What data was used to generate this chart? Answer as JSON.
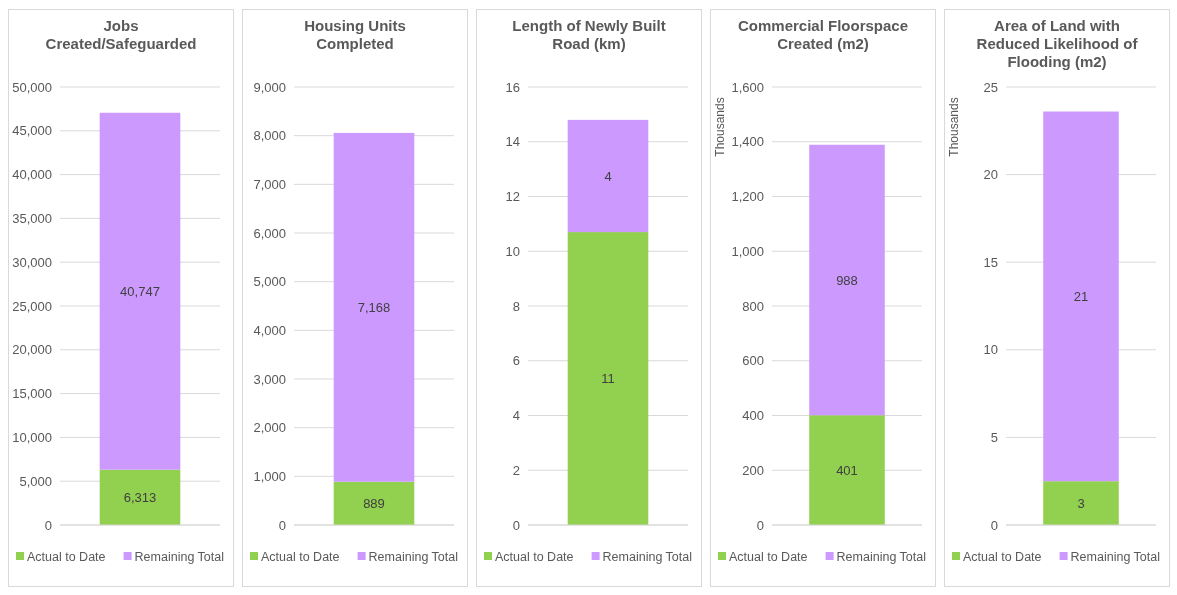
{
  "chart_data": [
    {
      "type": "bar",
      "title": "Jobs Created/Safeguarded",
      "stacked": true,
      "categories": [
        null
      ],
      "ylim": [
        0,
        50000
      ],
      "yticks": [
        {
          "value": 0,
          "label": "0"
        },
        {
          "value": 5000,
          "label": "5,000"
        },
        {
          "value": 10000,
          "label": "10,000"
        },
        {
          "value": 15000,
          "label": "15,000"
        },
        {
          "value": 20000,
          "label": "20,000"
        },
        {
          "value": 25000,
          "label": "25,000"
        },
        {
          "value": 30000,
          "label": "30,000"
        },
        {
          "value": 35000,
          "label": "35,000"
        },
        {
          "value": 40000,
          "label": "40,000"
        },
        {
          "value": 45000,
          "label": "45,000"
        },
        {
          "value": 50000,
          "label": "50,000"
        }
      ],
      "grid": "y",
      "legend": "bottom",
      "series": [
        {
          "name": "Actual to Date",
          "color": "#92d050",
          "values": [
            6313
          ],
          "value_labels": [
            "6,313"
          ]
        },
        {
          "name": "Remaining Total",
          "color": "#cc99ff",
          "values": [
            40747
          ],
          "value_labels": [
            "40,747"
          ]
        }
      ]
    },
    {
      "type": "bar",
      "title": "Housing Units Completed",
      "stacked": true,
      "categories": [
        null
      ],
      "ylim": [
        0,
        9000
      ],
      "yticks": [
        {
          "value": 0,
          "label": "0"
        },
        {
          "value": 1000,
          "label": "1,000"
        },
        {
          "value": 2000,
          "label": "2,000"
        },
        {
          "value": 3000,
          "label": "3,000"
        },
        {
          "value": 4000,
          "label": "4,000"
        },
        {
          "value": 5000,
          "label": "5,000"
        },
        {
          "value": 6000,
          "label": "6,000"
        },
        {
          "value": 7000,
          "label": "7,000"
        },
        {
          "value": 8000,
          "label": "8,000"
        },
        {
          "value": 9000,
          "label": "9,000"
        }
      ],
      "grid": "y",
      "legend": "bottom",
      "series": [
        {
          "name": "Actual to Date",
          "color": "#92d050",
          "values": [
            889
          ],
          "value_labels": [
            "889"
          ]
        },
        {
          "name": "Remaining Total",
          "color": "#cc99ff",
          "values": [
            7168
          ],
          "value_labels": [
            "7,168"
          ]
        }
      ]
    },
    {
      "type": "bar",
      "title": "Length of Newly Built Road (km)",
      "stacked": true,
      "categories": [
        null
      ],
      "ylim": [
        0,
        16
      ],
      "yticks": [
        0,
        2,
        4,
        6,
        8,
        10,
        12,
        14,
        16
      ],
      "grid": "y",
      "legend": "bottom",
      "series": [
        {
          "name": "Actual to Date",
          "color": "#92d050",
          "values": [
            10.7
          ],
          "value_labels": [
            "11"
          ]
        },
        {
          "name": "Remaining Total",
          "color": "#cc99ff",
          "values": [
            4.1
          ],
          "value_labels": [
            "4"
          ]
        }
      ]
    },
    {
      "type": "bar",
      "title": "Commercial Floorspace Created (m2)",
      "ylabel": "Thousands",
      "stacked": true,
      "categories": [
        null
      ],
      "ylim": [
        0,
        1600
      ],
      "yticks": [
        {
          "value": 0,
          "label": "0"
        },
        {
          "value": 200,
          "label": "200"
        },
        {
          "value": 400,
          "label": "400"
        },
        {
          "value": 600,
          "label": "600"
        },
        {
          "value": 800,
          "label": "800"
        },
        {
          "value": 1000,
          "label": "1,000"
        },
        {
          "value": 1200,
          "label": "1,200"
        },
        {
          "value": 1400,
          "label": "1,400"
        },
        {
          "value": 1600,
          "label": "1,600"
        }
      ],
      "grid": "y",
      "legend": "bottom",
      "series": [
        {
          "name": "Actual to Date",
          "color": "#92d050",
          "values": [
            401
          ],
          "value_labels": [
            "401"
          ]
        },
        {
          "name": "Remaining Total",
          "color": "#cc99ff",
          "values": [
            988
          ],
          "value_labels": [
            "988"
          ]
        }
      ]
    },
    {
      "type": "bar",
      "title": "Area of Land with Reduced Likelihood of Flooding (m2)",
      "ylabel": "Thousands",
      "stacked": true,
      "categories": [
        null
      ],
      "ylim": [
        0,
        25
      ],
      "yticks": [
        0,
        5,
        10,
        15,
        20,
        25
      ],
      "grid": "y",
      "legend": "bottom",
      "series": [
        {
          "name": "Actual to Date",
          "color": "#92d050",
          "values": [
            2.5
          ],
          "value_labels": [
            "3"
          ]
        },
        {
          "name": "Remaining Total",
          "color": "#cc99ff",
          "values": [
            21.1
          ],
          "value_labels": [
            "21"
          ]
        }
      ]
    }
  ]
}
